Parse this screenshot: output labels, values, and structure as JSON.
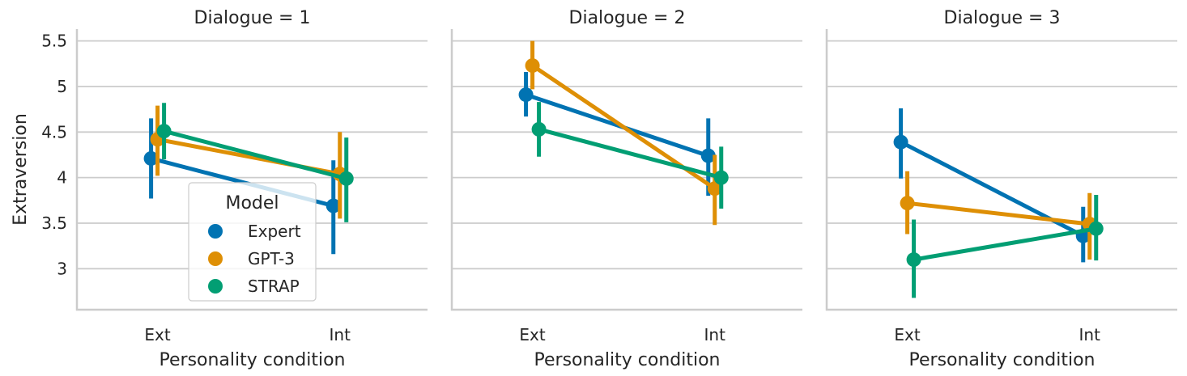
{
  "chart_data": {
    "type": "line",
    "ylabel": "Extraversion",
    "xlabel": "Personality condition",
    "categories": [
      "Ext",
      "Int"
    ],
    "ylim": [
      2.55,
      5.63
    ],
    "yticks": [
      3.0,
      3.5,
      4.0,
      4.5,
      5.0,
      5.5
    ],
    "grid": "horizontal",
    "legend": {
      "title": "Model",
      "placement": "inside-first-panel-lower-center",
      "entries": [
        "Expert",
        "GPT-3",
        "STRAP"
      ]
    },
    "colors": {
      "Expert": "#0173b2",
      "GPT-3": "#de8f05",
      "STRAP": "#029e73",
      "grid": "#cccccc",
      "spine": "#cccccc"
    },
    "panels": [
      {
        "title": "Dialogue = 1",
        "series": [
          {
            "name": "Expert",
            "values": [
              4.21,
              3.69
            ],
            "ci": [
              [
                3.77,
                4.65
              ],
              [
                3.16,
                4.19
              ]
            ]
          },
          {
            "name": "GPT-3",
            "values": [
              4.42,
              4.04
            ],
            "ci": [
              [
                4.02,
                4.79
              ],
              [
                3.55,
                4.5
              ]
            ]
          },
          {
            "name": "STRAP",
            "values": [
              4.51,
              3.99
            ],
            "ci": [
              [
                4.2,
                4.82
              ],
              [
                3.51,
                4.44
              ]
            ]
          }
        ]
      },
      {
        "title": "Dialogue = 2",
        "series": [
          {
            "name": "Expert",
            "values": [
              4.91,
              4.24
            ],
            "ci": [
              [
                4.67,
                5.16
              ],
              [
                3.8,
                4.65
              ]
            ]
          },
          {
            "name": "GPT-3",
            "values": [
              5.23,
              3.88
            ],
            "ci": [
              [
                4.97,
                5.5
              ],
              [
                3.48,
                4.25
              ]
            ]
          },
          {
            "name": "STRAP",
            "values": [
              4.53,
              4.0
            ],
            "ci": [
              [
                4.23,
                4.83
              ],
              [
                3.66,
                4.34
              ]
            ]
          }
        ]
      },
      {
        "title": "Dialogue = 3",
        "series": [
          {
            "name": "Expert",
            "values": [
              4.39,
              3.36
            ],
            "ci": [
              [
                3.99,
                4.76
              ],
              [
                3.07,
                3.68
              ]
            ]
          },
          {
            "name": "GPT-3",
            "values": [
              3.72,
              3.49
            ],
            "ci": [
              [
                3.38,
                4.07
              ],
              [
                3.1,
                3.83
              ]
            ]
          },
          {
            "name": "STRAP",
            "values": [
              3.1,
              3.44
            ],
            "ci": [
              [
                2.68,
                3.54
              ],
              [
                3.09,
                3.81
              ]
            ]
          }
        ]
      }
    ]
  }
}
